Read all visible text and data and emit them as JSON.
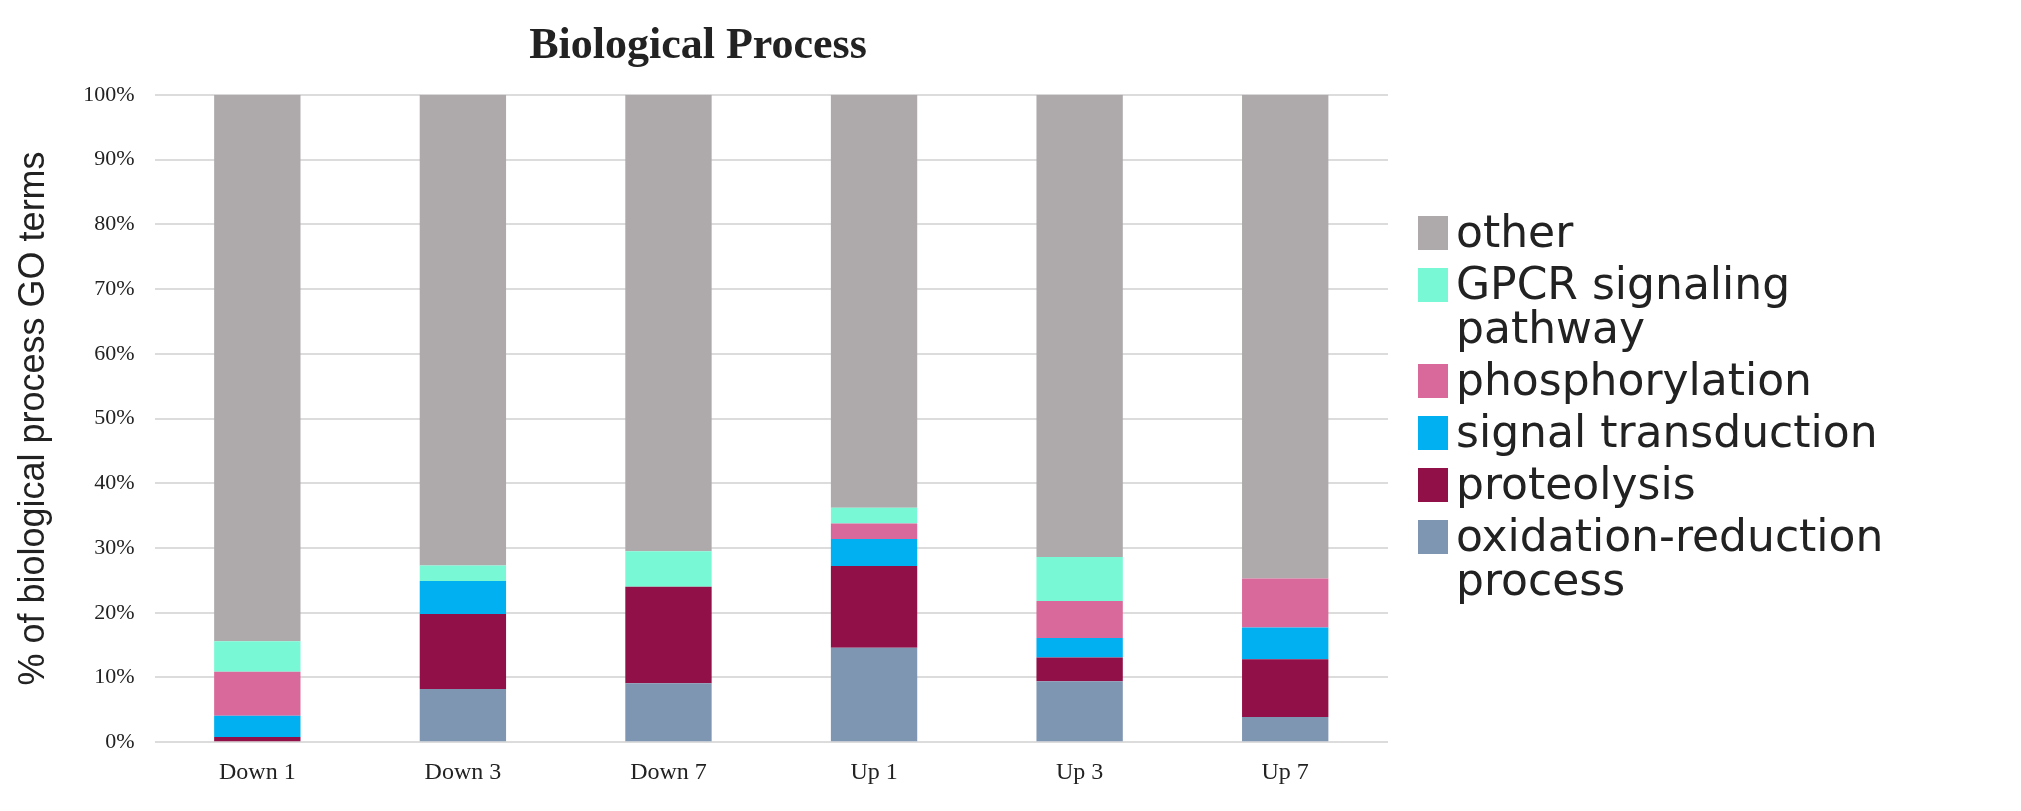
{
  "chart_data": {
    "type": "bar",
    "title": "Biological Process",
    "ylabel": "% of biological process GO terms",
    "categories": [
      "Down 1",
      "Down 3",
      "Down 7",
      "Up 1",
      "Up 3",
      "Up 7"
    ],
    "stacked": true,
    "series": [
      {
        "name": "oxidation-reduction process",
        "color": "#7f96b2",
        "values": [
          0,
          8.2,
          9.1,
          14.6,
          9.4,
          3.9
        ]
      },
      {
        "name": "proteolysis",
        "color": "#921048",
        "values": [
          0.8,
          11.6,
          14.9,
          12.6,
          3.7,
          8.9
        ]
      },
      {
        "name": "signal transduction",
        "color": "#00b0f0",
        "values": [
          3.3,
          5.1,
          0,
          4.2,
          3,
          4.9
        ]
      },
      {
        "name": "phosphorylation",
        "color": "#d9699a",
        "values": [
          6.8,
          0,
          0,
          2.4,
          5.7,
          7.6
        ]
      },
      {
        "name": "GPCR signaling pathway",
        "color": "#78f8d4",
        "values": [
          4.7,
          2.4,
          5.5,
          2.4,
          6.8,
          0
        ]
      },
      {
        "name": "other",
        "color": "#aeaaab",
        "values": [
          84.4,
          72.7,
          70.5,
          63.8,
          71.4,
          74.7
        ]
      }
    ],
    "ylim": [
      0,
      100
    ],
    "yticks": [
      {
        "value": 0,
        "label": "0%"
      },
      {
        "value": 10,
        "label": "10%"
      },
      {
        "value": 20,
        "label": "20%"
      },
      {
        "value": 30,
        "label": "30%"
      },
      {
        "value": 40,
        "label": "40%"
      },
      {
        "value": 50,
        "label": "50%"
      },
      {
        "value": 60,
        "label": "60%"
      },
      {
        "value": 70,
        "label": "70%"
      },
      {
        "value": 80,
        "label": "80%"
      },
      {
        "value": 90,
        "label": "90%"
      },
      {
        "value": 100,
        "label": "100%"
      }
    ],
    "grid": "y",
    "legend": "right"
  }
}
